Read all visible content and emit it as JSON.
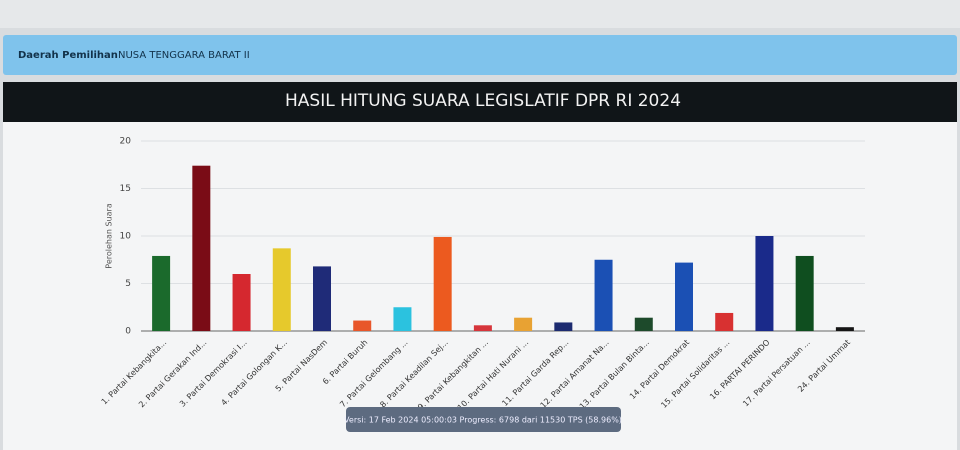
{
  "header": {
    "label": "Daerah Pemilihan",
    "value": "NUSA TENGGARA BARAT II"
  },
  "chart_data": {
    "type": "bar",
    "title": "HASIL HITUNG SUARA LEGISLATIF DPR RI 2024",
    "y_label": "Perolehan Suara",
    "categories": [
      "1. Partai Kebangkita...",
      "2. Partai Gerakan Ind...",
      "3. Partai Demokrasi I...",
      "4. Partai Golongan K...",
      "5. Partai NasDem",
      "6. Partai Buruh",
      "7. Partai Gelombang ...",
      "8. Partai Keadilan Sej...",
      "9. Partai Kebangkitan ...",
      "10. Partai Hati Nurani ...",
      "11. Partai Garda Rep...",
      "12. Partai Amanat Na...",
      "13. Partai Bulan Binta...",
      "14. Partai Demokrat",
      "15. Partai Solidaritas ...",
      "16. PARTAI PERINDO",
      "17. Partai Persatuan ...",
      "24. Partai Ummat"
    ],
    "values": [
      7.9,
      17.4,
      6.0,
      8.7,
      6.8,
      1.1,
      2.5,
      9.9,
      0.6,
      1.4,
      0.9,
      7.5,
      1.4,
      7.2,
      1.9,
      10.0,
      7.9,
      0.4
    ],
    "colors": [
      "#1b6a2c",
      "#7a0c16",
      "#d5282f",
      "#e6c92c",
      "#1f2b78",
      "#e8562a",
      "#2bc2df",
      "#ec5a1f",
      "#d6353b",
      "#e8a233",
      "#1c2b70",
      "#1b50b4",
      "#1d4a2b",
      "#1b50b4",
      "#d83131",
      "#1a2a8a",
      "#0f4e1f",
      "#151515"
    ],
    "ylim": [
      0,
      20
    ],
    "yticks": [
      0,
      5,
      10,
      15,
      20
    ],
    "grid": true
  },
  "footer": {
    "version": "Versi: 17 Feb 2024 05:00:03 Progress: 6798 dari 11530 TPS (58.96%)"
  }
}
